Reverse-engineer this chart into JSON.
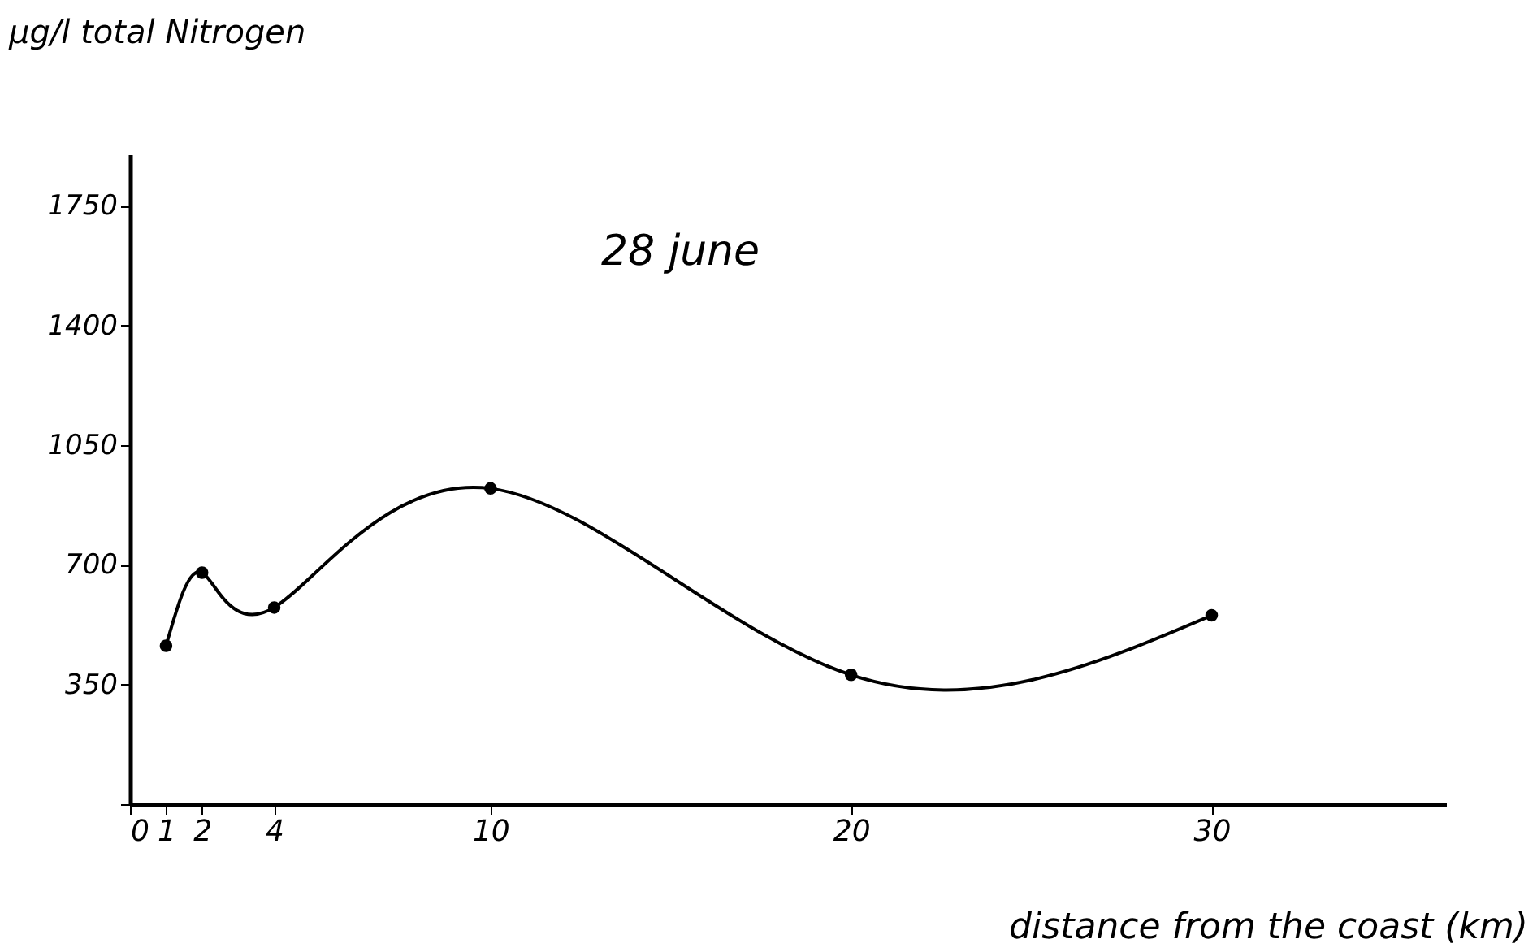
{
  "chart_data": {
    "type": "line",
    "title": "28 june",
    "xlabel": "distance from the coast (km)",
    "ylabel": "µg/l  total Nitrogen",
    "x": [
      1,
      2,
      4,
      10,
      20,
      30
    ],
    "values": [
      463,
      677,
      575,
      923,
      378,
      552
    ],
    "color": "#000000",
    "marker": "circle",
    "line_style": "solid",
    "grid": false,
    "xlim": [
      0,
      36.5
    ],
    "xticks": [
      0,
      1,
      2,
      4,
      10,
      20,
      30
    ],
    "ylim": [
      0,
      1900
    ],
    "yticks": [
      {
        "value": 0,
        "label": null
      },
      350,
      700,
      1050,
      1400,
      1750
    ]
  }
}
